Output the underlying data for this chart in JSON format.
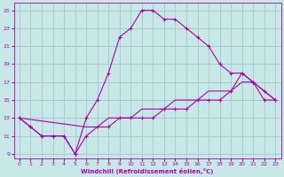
{
  "xlabel": "Windchill (Refroidissement éolien,°C)",
  "bg_color": "#c8e8e8",
  "grid_color": "#a8cccc",
  "line_color": "#aa00aa",
  "xlim": [
    -0.5,
    23.5
  ],
  "ylim": [
    8.5,
    25.8
  ],
  "xticks": [
    0,
    1,
    2,
    3,
    4,
    5,
    6,
    7,
    8,
    9,
    10,
    11,
    12,
    13,
    14,
    15,
    16,
    17,
    18,
    19,
    20,
    21,
    22,
    23
  ],
  "yticks": [
    9,
    11,
    13,
    15,
    17,
    19,
    21,
    23,
    25
  ],
  "line1_x": [
    0,
    1,
    2,
    3,
    4,
    5,
    6,
    7,
    8,
    9,
    10,
    11,
    12,
    13,
    14,
    15,
    16,
    17,
    18,
    19,
    20,
    21,
    22,
    23
  ],
  "line1_y": [
    13,
    12,
    11,
    11,
    11,
    9,
    13,
    15,
    18,
    22,
    23,
    25,
    25,
    24,
    24,
    23,
    22,
    21,
    19,
    18,
    18,
    17,
    15,
    15
  ],
  "line2_x": [
    0,
    1,
    2,
    3,
    4,
    5,
    6,
    7,
    8,
    9,
    10,
    11,
    12,
    13,
    14,
    15,
    16,
    17,
    18,
    19,
    20,
    21,
    22,
    23
  ],
  "line2_y": [
    13,
    12,
    11,
    11,
    11,
    9,
    11,
    12,
    12,
    13,
    13,
    13,
    13,
    14,
    14,
    14,
    15,
    15,
    15,
    16,
    18,
    17,
    16,
    15
  ],
  "line3_x": [
    0,
    6,
    7,
    8,
    9,
    10,
    11,
    12,
    13,
    14,
    15,
    16,
    17,
    18,
    19,
    20,
    21,
    22,
    23
  ],
  "line3_y": [
    13,
    12,
    12,
    13,
    13,
    13,
    14,
    14,
    14,
    15,
    15,
    15,
    16,
    16,
    16,
    17,
    17,
    16,
    15
  ]
}
